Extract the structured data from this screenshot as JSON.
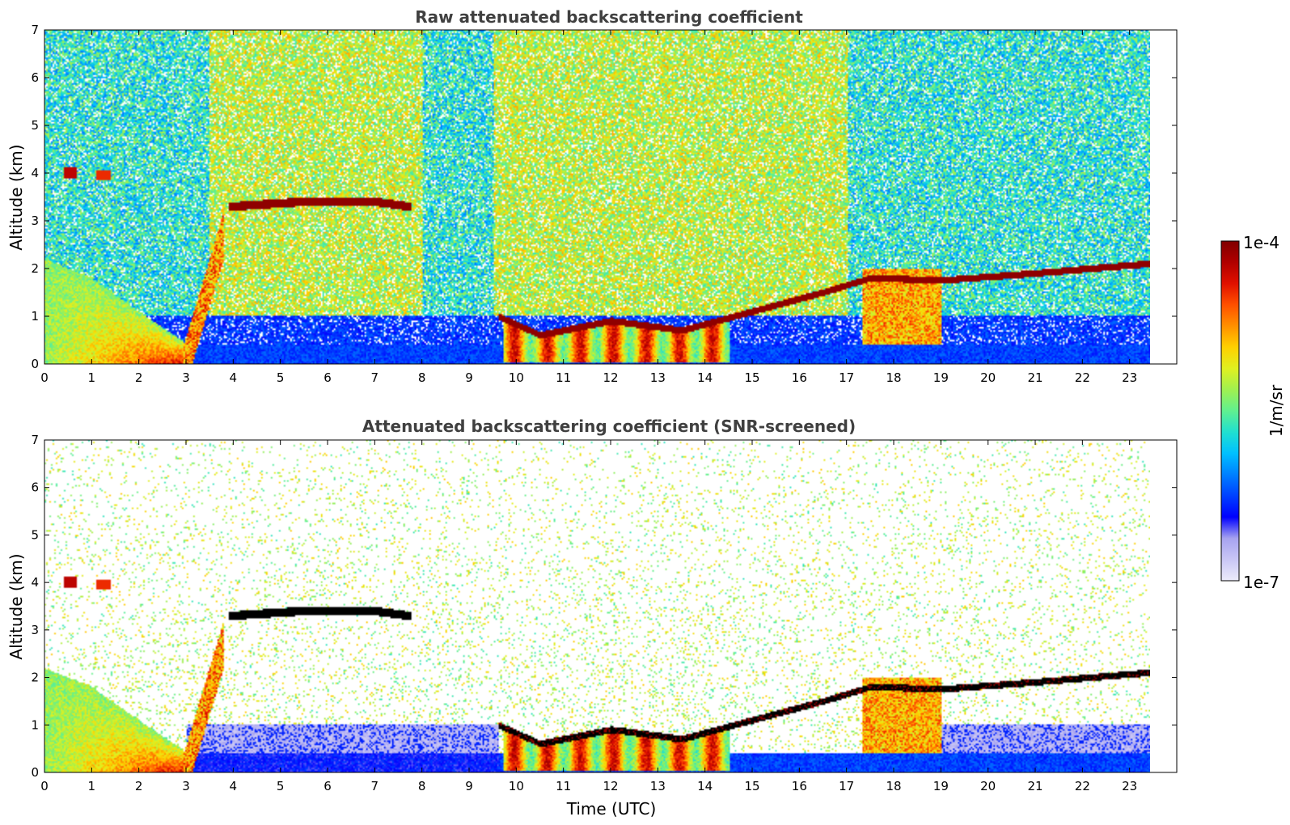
{
  "chart_data": [
    {
      "type": "heatmap",
      "title": "Raw attenuated backscattering coefficient",
      "xlabel": "",
      "ylabel": "Altitude (km)",
      "xlim": [
        0,
        24
      ],
      "ylim": [
        0,
        7
      ],
      "x_ticks": [
        "0",
        "1",
        "2",
        "3",
        "4",
        "5",
        "6",
        "7",
        "8",
        "9",
        "10",
        "11",
        "12",
        "13",
        "14",
        "15",
        "16",
        "17",
        "18",
        "19",
        "20",
        "21",
        "22",
        "23"
      ],
      "y_ticks": [
        "0",
        "1",
        "2",
        "3",
        "4",
        "5",
        "6",
        "7"
      ],
      "data_time_range": [
        0,
        23.4
      ],
      "features": {
        "cloud_layer_top": [
          {
            "t": 4.0,
            "alt": 3.3
          },
          {
            "t": 5.5,
            "alt": 3.4
          },
          {
            "t": 7.0,
            "alt": 3.4
          },
          {
            "t": 7.7,
            "alt": 3.3
          }
        ],
        "boundary_layer_top": [
          {
            "t": 9.6,
            "alt": 1.0
          },
          {
            "t": 10.5,
            "alt": 0.6
          },
          {
            "t": 12.0,
            "alt": 0.9
          },
          {
            "t": 13.5,
            "alt": 0.7
          },
          {
            "t": 15.0,
            "alt": 1.1
          },
          {
            "t": 16.5,
            "alt": 1.5
          },
          {
            "t": 17.5,
            "alt": 1.8
          },
          {
            "t": 19.0,
            "alt": 1.75
          },
          {
            "t": 21.0,
            "alt": 1.9
          },
          {
            "t": 23.4,
            "alt": 2.1
          }
        ],
        "aerosol_early": [
          {
            "t": 0.0,
            "alt": 2.2
          },
          {
            "t": 1.0,
            "alt": 1.8
          },
          {
            "t": 2.0,
            "alt": 1.1
          },
          {
            "t": 2.9,
            "alt": 0.5
          }
        ]
      }
    },
    {
      "type": "heatmap",
      "title": "Attenuated backscattering coefficient (SNR-screened)",
      "xlabel": "Time (UTC)",
      "ylabel": "Altitude (km)",
      "xlim": [
        0,
        24
      ],
      "ylim": [
        0,
        7
      ],
      "x_ticks": [
        "0",
        "1",
        "2",
        "3",
        "4",
        "5",
        "6",
        "7",
        "8",
        "9",
        "10",
        "11",
        "12",
        "13",
        "14",
        "15",
        "16",
        "17",
        "18",
        "19",
        "20",
        "21",
        "22",
        "23"
      ],
      "y_ticks": [
        "0",
        "1",
        "2",
        "3",
        "4",
        "5",
        "6",
        "7"
      ],
      "data_time_range": [
        0,
        23.4
      ]
    }
  ],
  "colorbar": {
    "label": "1/m/sr",
    "min_label": "1e-7",
    "max_label": "1e-4",
    "scale": "log",
    "range": [
      1e-07,
      0.0001
    ],
    "colormap": [
      "#ecebfa",
      "#c9c6f5",
      "#a6a2f0",
      "#0000ff",
      "#0040ff",
      "#0080ff",
      "#00c0ff",
      "#20e0d0",
      "#60f090",
      "#a0f050",
      "#e0f020",
      "#ffd000",
      "#ff9000",
      "#ff5000",
      "#e01000",
      "#b00000",
      "#800000"
    ]
  },
  "colors": {
    "saturated_screened": "#000000",
    "title_gray": "#404040"
  }
}
